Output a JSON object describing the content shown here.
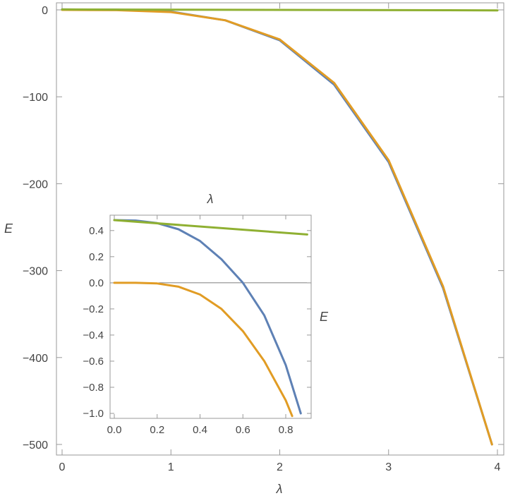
{
  "chart_data": [
    {
      "type": "line",
      "xlabel": "λ",
      "ylabel": "E",
      "xlim": [
        0,
        4
      ],
      "ylim": [
        -500,
        0
      ],
      "xticks": [
        0,
        1,
        2,
        3,
        4
      ],
      "yticks": [
        0,
        -100,
        -200,
        -300,
        -400,
        -500
      ],
      "xtick_labels": [
        "0",
        "1",
        "2",
        "3",
        "4"
      ],
      "ytick_labels": [
        "0",
        "−100",
        "−200",
        "−300",
        "−400",
        "−500"
      ],
      "grid": false,
      "series": [
        {
          "color": "#5e81b5",
          "x": [
            0,
            0.5,
            1,
            1.5,
            2,
            2.5,
            3,
            3.5,
            3.95
          ],
          "y": [
            0.5,
            0.2,
            -2,
            -12,
            -35,
            -86,
            -175,
            -320,
            -500
          ]
        },
        {
          "color": "#e19c24",
          "x": [
            0,
            0.5,
            1,
            1.5,
            2,
            2.5,
            3,
            3.5,
            3.95
          ],
          "y": [
            0,
            -0.3,
            -2.5,
            -12,
            -34,
            -84,
            -173,
            -318,
            -500
          ]
        },
        {
          "color": "#8fb032",
          "x": [
            0,
            4
          ],
          "y": [
            0.5,
            -0.6
          ]
        }
      ]
    },
    {
      "type": "line",
      "xlabel": "λ",
      "ylabel": "E",
      "xlim": [
        0,
        0.9
      ],
      "ylim": [
        -1.02,
        0.52
      ],
      "xticks": [
        0,
        0.2,
        0.4,
        0.6,
        0.8
      ],
      "yticks": [
        0.4,
        0.2,
        0,
        -0.2,
        -0.4,
        -0.6,
        -0.8,
        -1.0
      ],
      "xtick_labels": [
        "0.0",
        "0.2",
        "0.4",
        "0.6",
        "0.8"
      ],
      "ytick_labels": [
        "0.4",
        "0.2",
        "0.0",
        "−0.2",
        "−0.4",
        "−0.6",
        "−0.8",
        "−1.0"
      ],
      "series": [
        {
          "color": "#5e81b5",
          "x": [
            0,
            0.1,
            0.2,
            0.3,
            0.4,
            0.5,
            0.6,
            0.7,
            0.8,
            0.87
          ],
          "y": [
            0.48,
            0.477,
            0.457,
            0.41,
            0.32,
            0.18,
            0.0,
            -0.25,
            -0.63,
            -1.0
          ]
        },
        {
          "color": "#e19c24",
          "x": [
            0,
            0.1,
            0.2,
            0.3,
            0.4,
            0.5,
            0.6,
            0.7,
            0.8,
            0.83
          ],
          "y": [
            0.0,
            0.0,
            -0.005,
            -0.03,
            -0.09,
            -0.2,
            -0.37,
            -0.6,
            -0.9,
            -1.02
          ]
        },
        {
          "color": "#8fb032",
          "x": [
            0,
            0.9
          ],
          "y": [
            0.48,
            0.37
          ]
        }
      ]
    }
  ]
}
